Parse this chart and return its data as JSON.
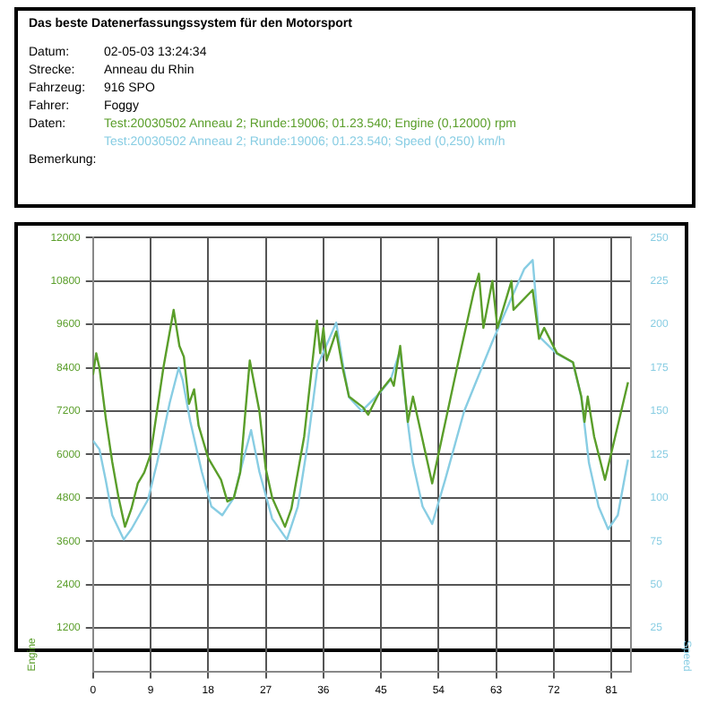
{
  "chart_data": {
    "type": "line",
    "title": "Das beste Datenerfassungssystem für den Motorsport",
    "annotations": [
      "Datum:",
      "02-05-03 13:24:34",
      "Strecke:",
      "Anneau du Rhin",
      "Fahrzeug:",
      "916 SPO",
      "Fahrer:",
      "Foggy",
      "Daten:",
      "Bemerkung:"
    ],
    "ylabel": "Engine",
    "y2label": "Speed",
    "xlim": [
      0,
      84
    ],
    "xticks": [
      0,
      9,
      18,
      27,
      36,
      45,
      54,
      63,
      72,
      81
    ],
    "ylim": [
      0,
      12000
    ],
    "yticks": [
      1200,
      2400,
      3600,
      4800,
      6000,
      7200,
      8400,
      9600,
      10800,
      12000
    ],
    "y2lim": [
      0,
      250
    ],
    "y2ticks": [
      25,
      50,
      75,
      100,
      125,
      150,
      175,
      200,
      225,
      250
    ],
    "grid": true,
    "legend": "top",
    "marker": "none",
    "line_style": "solid",
    "series": [
      {
        "name": "Test:20030502 Anneau 2; Runde:19006; 01.23.540; Engine (0,12000) rpm",
        "color": "#5a9e2a",
        "x": [
          0,
          0.5,
          1,
          2,
          3,
          4,
          5,
          6,
          7,
          8,
          9,
          10,
          11,
          12.6,
          13.5,
          14.2,
          15,
          15.8,
          16.5,
          18,
          20,
          21,
          22,
          23,
          24.5,
          26,
          27,
          28,
          30,
          31,
          33,
          35,
          35.5,
          36,
          36.5,
          38,
          39,
          40,
          42.2,
          43,
          44.7,
          46.5,
          47,
          48,
          49.2,
          50,
          53,
          57,
          59.5,
          60.3,
          61,
          62.4,
          63.2,
          65.4,
          65.7,
          68.7,
          69.7,
          70.5,
          72.5,
          75,
          76.3,
          76.8,
          77.3,
          78.3,
          80,
          83.6
        ],
        "values": [
          8200,
          8800,
          8400,
          7000,
          5800,
          4800,
          4000,
          4500,
          5200,
          5500,
          6000,
          7200,
          8400,
          10000,
          9000,
          8700,
          7400,
          7800,
          6800,
          5900,
          5300,
          4700,
          4800,
          5500,
          8600,
          7200,
          5600,
          4800,
          4000,
          4500,
          6500,
          9700,
          8800,
          9500,
          8600,
          9400,
          8400,
          7600,
          7300,
          7100,
          7700,
          8100,
          7900,
          9000,
          6900,
          7600,
          5200,
          8500,
          10500,
          11000,
          9500,
          10800,
          9500,
          10800,
          10000,
          10550,
          9200,
          9500,
          8800,
          8550,
          7600,
          6900,
          7600,
          6500,
          5300,
          8000
        ]
      },
      {
        "name": "Test:20030502 Anneau 2; Runde:19006; 01.23.540; Speed (0,250) km/h",
        "color": "#88cde3",
        "axis": "y2",
        "x": [
          0,
          1,
          2,
          3,
          4.8,
          6,
          8.6,
          10,
          12,
          13.4,
          14,
          15.2,
          17,
          18.5,
          20.2,
          22,
          23,
          24.7,
          26,
          28,
          30.3,
          32,
          33.5,
          35.1,
          38,
          39,
          40,
          42,
          44.7,
          46.5,
          48,
          49.2,
          50,
          51.5,
          53,
          55,
          58,
          62.4,
          67.4,
          68.7,
          69.7,
          72.5,
          75,
          76.3,
          77.5,
          79,
          80.5,
          82,
          83.6
        ],
        "values": [
          133,
          128,
          110,
          90,
          76,
          82,
          99,
          120,
          155,
          175,
          168,
          144,
          115,
          95,
          90,
          100,
          115,
          139,
          115,
          88,
          76,
          95,
          130,
          176,
          201,
          178,
          158,
          150,
          160,
          168,
          185,
          143,
          120,
          95,
          85,
          110,
          150,
          190,
          232,
          237,
          193,
          183,
          178,
          158,
          120,
          95,
          82,
          90,
          122
        ]
      }
    ]
  }
}
